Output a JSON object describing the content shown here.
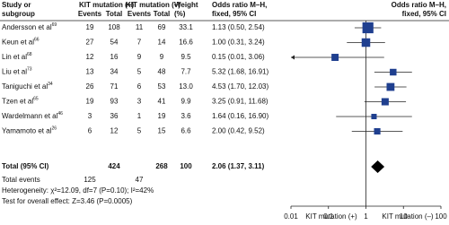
{
  "chart_data": {
    "type": "forest",
    "headers": {
      "study": [
        "Study or",
        "subgroup"
      ],
      "group1": "KIT mutation (+)",
      "group2": "KIT mutation (–)",
      "events": "Events",
      "total": "Total",
      "weight": [
        "Weight",
        "(%)"
      ],
      "ci_table": [
        "Odds ratio M–H,",
        "fixed, 95% CI"
      ],
      "ci_plot": [
        "Odds ratio M–H,",
        "fixed, 95% CI"
      ]
    },
    "studies": [
      {
        "name": "Andersson et al",
        "ref": 69,
        "events1": 19,
        "total1": 108,
        "events2": 11,
        "total2": 69,
        "weight": 33.1,
        "or": 1.13,
        "ci": [
          0.5,
          2.54
        ],
        "ci_label": "1.13 (0.50, 2.54)"
      },
      {
        "name": "Keun et al",
        "ref": 66,
        "events1": 27,
        "total1": 54,
        "events2": 7,
        "total2": 14,
        "weight": 16.6,
        "or": 1.0,
        "ci": [
          0.31,
          3.24
        ],
        "ci_label": "1.00 (0.31, 3.24)"
      },
      {
        "name": "Lin et al",
        "ref": 68,
        "events1": 12,
        "total1": 16,
        "events2": 9,
        "total2": 9,
        "weight": 9.5,
        "or": 0.15,
        "ci": [
          0.01,
          3.06
        ],
        "ci_label": "0.15 (0.01, 3.06)"
      },
      {
        "name": "Liu et al",
        "ref": 73,
        "events1": 13,
        "total1": 34,
        "events2": 5,
        "total2": 48,
        "weight": 7.7,
        "or": 5.32,
        "ci": [
          1.68,
          16.91
        ],
        "ci_label": "5.32 (1.68, 16.91)"
      },
      {
        "name": "Taniguchi et al",
        "ref": 34,
        "events1": 26,
        "total1": 71,
        "events2": 6,
        "total2": 53,
        "weight": 13.0,
        "weight_label": "13.0",
        "or": 4.53,
        "ci": [
          1.7,
          12.03
        ],
        "ci_label": "4.53 (1.70, 12.03)"
      },
      {
        "name": "Tzen et al",
        "ref": 65,
        "events1": 19,
        "total1": 93,
        "events2": 3,
        "total2": 41,
        "weight": 9.9,
        "or": 3.25,
        "ci": [
          0.91,
          11.68
        ],
        "ci_label": "3.25 (0.91, 11.68)"
      },
      {
        "name": "Wardelmann et al",
        "ref": 46,
        "events1": 3,
        "total1": 36,
        "events2": 1,
        "total2": 19,
        "weight": 3.6,
        "or": 1.64,
        "ci": [
          0.16,
          16.9
        ],
        "ci_label": "1.64 (0.16, 16.90)"
      },
      {
        "name": "Yamamoto et al",
        "ref": 26,
        "events1": 6,
        "total1": 12,
        "events2": 5,
        "total2": 15,
        "weight": 6.6,
        "or": 2.0,
        "ci": [
          0.42,
          9.52
        ],
        "ci_label": "2.00 (0.42, 9.52)"
      }
    ],
    "total": {
      "name": "Total (95% CI)",
      "total1": 424,
      "total2": 268,
      "weight": 100,
      "or": 2.06,
      "ci": [
        1.37,
        3.11
      ],
      "ci_label": "2.06 (1.37, 3.11)"
    },
    "total_events": {
      "label": "Total events",
      "events1": 125,
      "events2": 47
    },
    "heterogeneity": "Heterogeneity: χ²=12.09, df=7 (P=0.10); I²=42%",
    "overall_test": "Test for overall effect: Z=3.46 (P=0.0005)",
    "xscale": "log",
    "xlim": [
      0.01,
      100
    ],
    "xticks": [
      0.01,
      0.1,
      1,
      10,
      100
    ],
    "xlabels": [
      "KIT mutation (+)",
      "KIT mutation (–)"
    ],
    "marker_color": "#1f3f8f",
    "summary_color": "#000000"
  }
}
